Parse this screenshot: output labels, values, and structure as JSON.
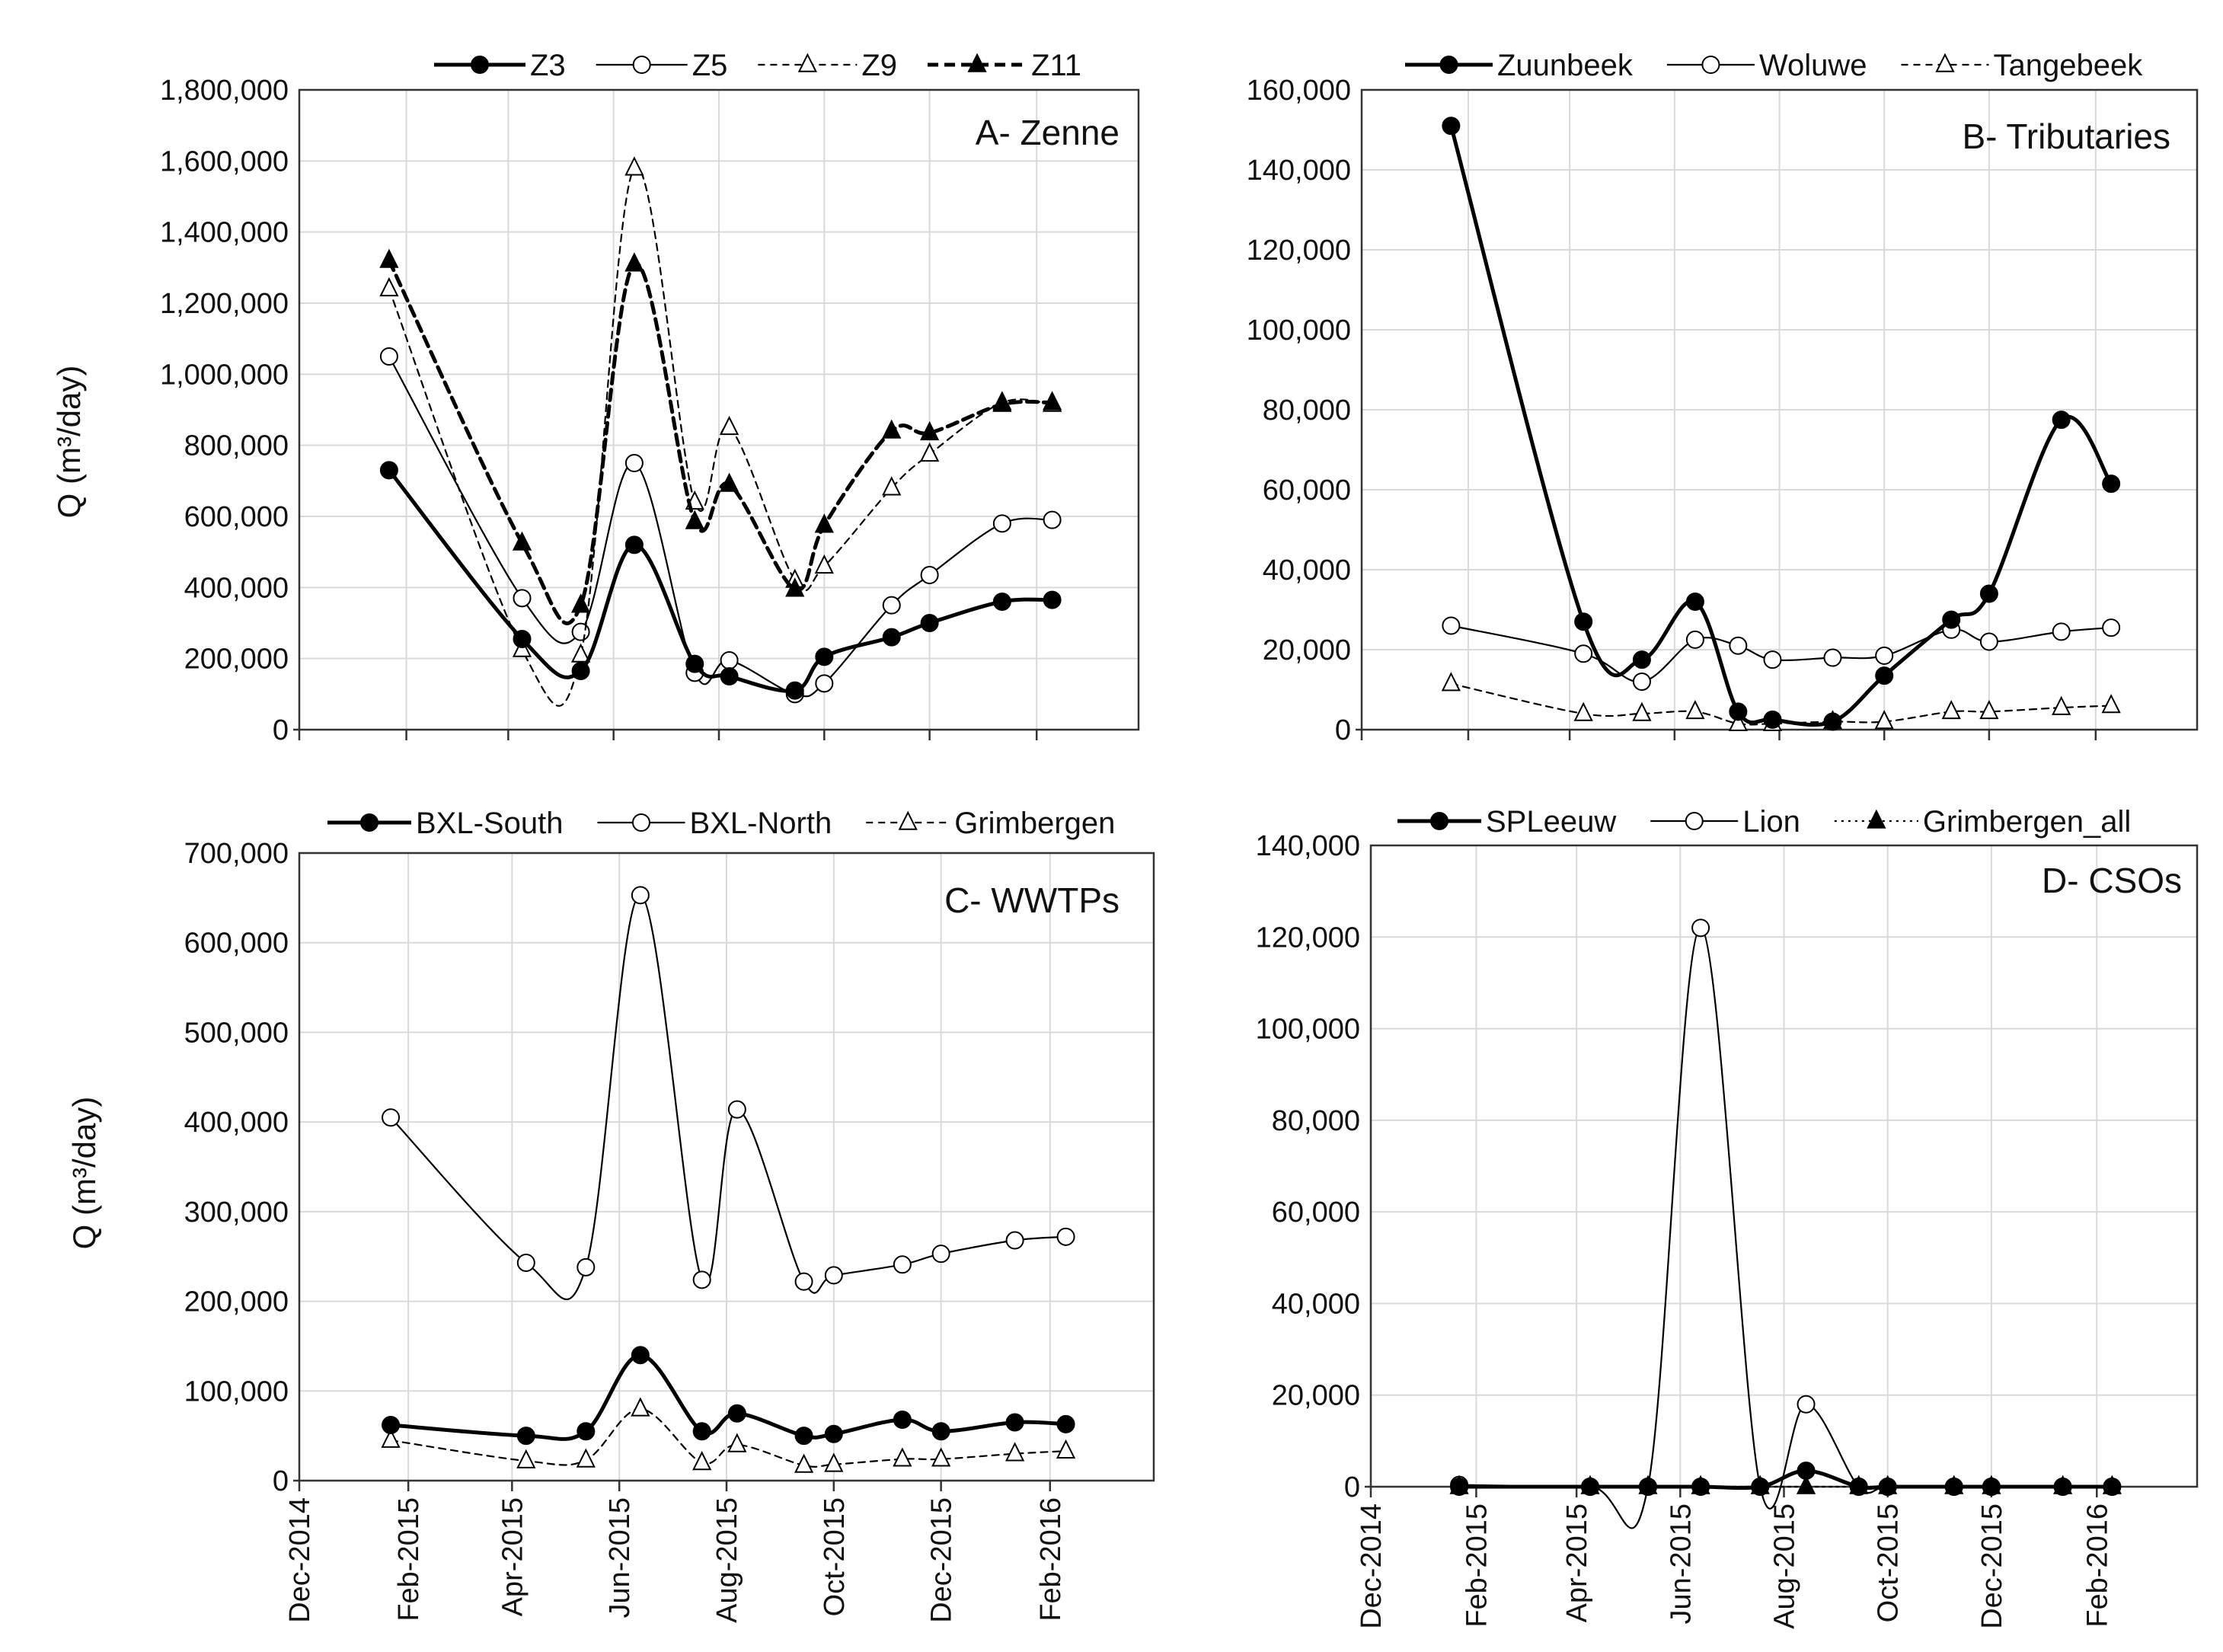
{
  "figure": {
    "ylabel": "Q (m³/day)"
  },
  "chart_data": [
    {
      "type": "line",
      "title": "A- Zenne",
      "ylabel": "Q (m³/day)",
      "ylim": [
        0,
        1800000
      ],
      "yticks": [
        0,
        200000,
        400000,
        600000,
        800000,
        1000000,
        1200000,
        1400000,
        1600000,
        1800000
      ],
      "xlim": [
        "2014-12-01",
        "2016-03-31"
      ],
      "grid": true,
      "legend": "top",
      "series": [
        {
          "name": "Z3",
          "style": "solid-thick",
          "marker": "filled-circle",
          "x": [
            "2015-01-22",
            "2015-04-09",
            "2015-05-13",
            "2015-06-13",
            "2015-07-18",
            "2015-08-07",
            "2015-09-14",
            "2015-10-01",
            "2015-11-09",
            "2015-12-01",
            "2016-01-12",
            "2016-02-10"
          ],
          "values": [
            730000,
            255000,
            165000,
            520000,
            185000,
            150000,
            110000,
            205000,
            260000,
            300000,
            360000,
            365000
          ]
        },
        {
          "name": "Z5",
          "style": "solid-thin",
          "marker": "open-circle",
          "x": [
            "2015-01-22",
            "2015-04-09",
            "2015-05-13",
            "2015-06-13",
            "2015-07-18",
            "2015-08-07",
            "2015-09-14",
            "2015-10-01",
            "2015-11-09",
            "2015-12-01",
            "2016-01-12",
            "2016-02-10"
          ],
          "values": [
            1050000,
            370000,
            275000,
            750000,
            160000,
            195000,
            100000,
            130000,
            350000,
            435000,
            580000,
            590000
          ]
        },
        {
          "name": "Z9",
          "style": "dashed-thin",
          "marker": "open-triangle",
          "x": [
            "2015-01-22",
            "2015-04-09",
            "2015-05-13",
            "2015-06-13",
            "2015-07-18",
            "2015-08-07",
            "2015-09-14",
            "2015-10-01",
            "2015-11-09",
            "2015-12-01",
            "2016-01-12",
            "2016-02-10"
          ],
          "values": [
            1240000,
            225000,
            210000,
            1580000,
            640000,
            850000,
            420000,
            460000,
            680000,
            775000,
            920000,
            915000
          ]
        },
        {
          "name": "Z11",
          "style": "dashed-thick",
          "marker": "filled-triangle",
          "x": [
            "2015-01-22",
            "2015-04-09",
            "2015-05-13",
            "2015-06-13",
            "2015-07-18",
            "2015-08-07",
            "2015-09-14",
            "2015-10-01",
            "2015-11-09",
            "2015-12-01",
            "2016-01-12",
            "2016-02-10"
          ],
          "values": [
            1320000,
            525000,
            350000,
            1310000,
            585000,
            690000,
            395000,
            575000,
            840000,
            835000,
            915000,
            920000
          ]
        }
      ]
    },
    {
      "type": "line",
      "title": "B- Tributaries",
      "ylim": [
        0,
        160000
      ],
      "yticks": [
        0,
        20000,
        40000,
        60000,
        80000,
        100000,
        120000,
        140000,
        160000
      ],
      "xlim": [
        "2014-12-01",
        "2016-03-31"
      ],
      "grid": true,
      "legend": "top",
      "series": [
        {
          "name": "Zuunbeek",
          "style": "solid-thick",
          "marker": "filled-circle",
          "x": [
            "2015-01-22",
            "2015-04-09",
            "2015-05-13",
            "2015-06-13",
            "2015-07-08",
            "2015-07-28",
            "2015-09-01",
            "2015-10-01",
            "2015-11-09",
            "2015-12-01",
            "2016-01-12",
            "2016-02-10"
          ],
          "values": [
            151000,
            27000,
            17500,
            32000,
            4500,
            2500,
            2000,
            13500,
            27500,
            34000,
            77500,
            61500
          ]
        },
        {
          "name": "Woluwe",
          "style": "solid-thin",
          "marker": "open-circle",
          "x": [
            "2015-01-22",
            "2015-04-09",
            "2015-05-13",
            "2015-06-13",
            "2015-07-08",
            "2015-07-28",
            "2015-09-01",
            "2015-10-01",
            "2015-11-09",
            "2015-12-01",
            "2016-01-12",
            "2016-02-10"
          ],
          "values": [
            26000,
            19000,
            12000,
            22500,
            21000,
            17500,
            18000,
            18500,
            25000,
            22000,
            24500,
            25500
          ]
        },
        {
          "name": "Tangebeek",
          "style": "dashed-thin",
          "marker": "open-triangle",
          "x": [
            "2015-01-22",
            "2015-04-09",
            "2015-05-13",
            "2015-06-13",
            "2015-07-08",
            "2015-07-28",
            "2015-09-01",
            "2015-10-01",
            "2015-11-09",
            "2015-12-01",
            "2016-01-12",
            "2016-02-10"
          ],
          "values": [
            11500,
            4000,
            4000,
            4500,
            1500,
            1500,
            2000,
            2000,
            4500,
            4500,
            5500,
            6000
          ]
        }
      ]
    },
    {
      "type": "line",
      "title": "C- WWTPs",
      "ylabel": "Q (m³/day)",
      "ylim": [
        0,
        700000
      ],
      "yticks": [
        0,
        100000,
        200000,
        300000,
        400000,
        500000,
        600000,
        700000
      ],
      "xlim": [
        "2014-12-01",
        "2016-03-31"
      ],
      "xticks": [
        "2014-12-01",
        "2015-02-01",
        "2015-04-01",
        "2015-06-01",
        "2015-08-01",
        "2015-10-01",
        "2015-12-01",
        "2016-02-01"
      ],
      "xticklabels": [
        "Dec-2014",
        "Feb-2015",
        "Apr-2015",
        "Jun-2015",
        "Aug-2015",
        "Oct-2015",
        "Dec-2015",
        "Feb-2016"
      ],
      "grid": true,
      "legend": "top",
      "series": [
        {
          "name": "BXL-South",
          "style": "solid-thick",
          "marker": "filled-circle",
          "x": [
            "2015-01-22",
            "2015-04-09",
            "2015-05-13",
            "2015-06-13",
            "2015-07-18",
            "2015-08-07",
            "2015-09-14",
            "2015-10-01",
            "2015-11-09",
            "2015-12-01",
            "2016-01-12",
            "2016-02-10"
          ],
          "values": [
            62000,
            50000,
            55000,
            140000,
            55000,
            75000,
            50000,
            52000,
            68000,
            55000,
            65000,
            63000
          ]
        },
        {
          "name": "BXL-North",
          "style": "solid-thin",
          "marker": "open-circle",
          "x": [
            "2015-01-22",
            "2015-04-09",
            "2015-05-13",
            "2015-06-13",
            "2015-07-18",
            "2015-08-07",
            "2015-09-14",
            "2015-10-01",
            "2015-11-09",
            "2015-12-01",
            "2016-01-12",
            "2016-02-10"
          ],
          "values": [
            405000,
            243000,
            238000,
            653000,
            224000,
            414000,
            222000,
            229000,
            241000,
            253000,
            268000,
            272000
          ]
        },
        {
          "name": "Grimbergen",
          "style": "dashed-thin",
          "marker": "open-triangle",
          "x": [
            "2015-01-22",
            "2015-04-09",
            "2015-05-13",
            "2015-06-13",
            "2015-07-18",
            "2015-08-07",
            "2015-09-14",
            "2015-10-01",
            "2015-11-09",
            "2015-12-01",
            "2016-01-12",
            "2016-02-10"
          ],
          "values": [
            45000,
            22000,
            23000,
            80000,
            20000,
            40000,
            17000,
            18000,
            24000,
            24000,
            30000,
            33000
          ]
        }
      ]
    },
    {
      "type": "line",
      "title": "D- CSOs",
      "ylim": [
        0,
        140000
      ],
      "yticks": [
        0,
        20000,
        40000,
        60000,
        80000,
        100000,
        120000,
        140000
      ],
      "xlim": [
        "2014-12-01",
        "2016-03-31"
      ],
      "xticks": [
        "2014-12-01",
        "2015-02-01",
        "2015-04-01",
        "2015-06-01",
        "2015-08-01",
        "2015-10-01",
        "2015-12-01",
        "2016-02-01"
      ],
      "xticklabels": [
        "Dec-2014",
        "Feb-2015",
        "Apr-2015",
        "Jun-2015",
        "Aug-2015",
        "Oct-2015",
        "Dec-2015",
        "Feb-2016"
      ],
      "grid": true,
      "legend": "top",
      "series": [
        {
          "name": "SPLeeuw",
          "style": "solid-thick",
          "marker": "filled-circle",
          "x": [
            "2015-01-22",
            "2015-04-09",
            "2015-05-13",
            "2015-06-13",
            "2015-07-18",
            "2015-08-14",
            "2015-09-14",
            "2015-10-01",
            "2015-11-09",
            "2015-12-01",
            "2016-01-12",
            "2016-02-10"
          ],
          "values": [
            0,
            0,
            0,
            0,
            0,
            3500,
            0,
            0,
            0,
            0,
            0,
            0
          ]
        },
        {
          "name": "Lion",
          "style": "solid-thin",
          "marker": "open-circle",
          "x": [
            "2015-01-22",
            "2015-04-09",
            "2015-05-13",
            "2015-06-13",
            "2015-07-18",
            "2015-08-14",
            "2015-09-14",
            "2015-10-01",
            "2015-11-09",
            "2015-12-01",
            "2016-01-12",
            "2016-02-10"
          ],
          "values": [
            400,
            0,
            0,
            122000,
            0,
            18000,
            0,
            0,
            0,
            0,
            0,
            0
          ]
        },
        {
          "name": "Grimbergen_all",
          "style": "dotted-thin",
          "marker": "filled-triangle",
          "x": [
            "2015-01-22",
            "2015-04-09",
            "2015-05-13",
            "2015-06-13",
            "2015-07-18",
            "2015-08-14",
            "2015-09-14",
            "2015-10-01",
            "2015-11-09",
            "2015-12-01",
            "2016-01-12",
            "2016-02-10"
          ],
          "values": [
            0,
            0,
            0,
            0,
            0,
            0,
            0,
            0,
            0,
            0,
            0,
            0
          ]
        }
      ]
    }
  ]
}
